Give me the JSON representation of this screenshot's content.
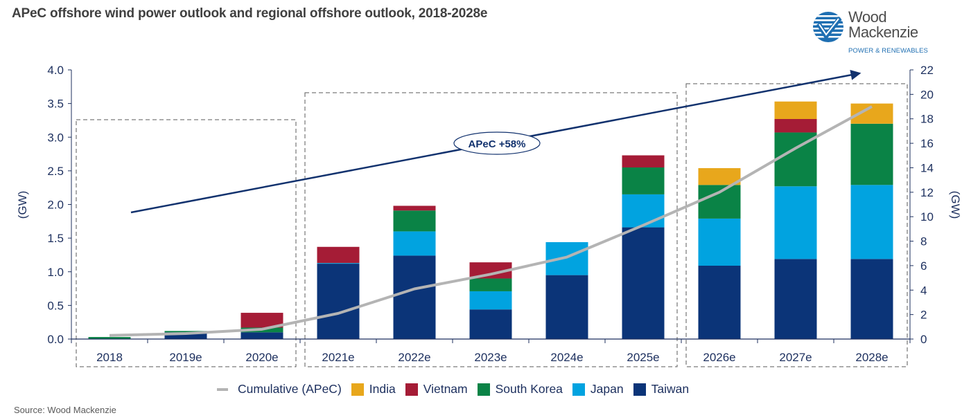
{
  "title": "APeC offshore wind power outlook and regional offshore outlook, 2018-2028e",
  "logo": {
    "line1": "Wood",
    "line2": "Mackenzie",
    "subtitle": "POWER & RENEWABLES"
  },
  "source": "Source: Wood Mackenzie",
  "colors": {
    "India": "#e8a71c",
    "Vietnam": "#a51c36",
    "South Korea": "#0a8346",
    "Japan": "#01a3e0",
    "Taiwan": "#0b3478",
    "Cumulative": "#b4b4b4",
    "axis": "#1c2f5e",
    "arrow": "#12326e"
  },
  "chart_data": {
    "type": "bar",
    "stacked": true,
    "title": "APeC offshore wind power outlook and regional offshore outlook, 2018-2028e",
    "xlabel": "",
    "ylabel": "(GW)",
    "y2label": "(GW)",
    "ylim": [
      0,
      4.0
    ],
    "y2lim": [
      0,
      22
    ],
    "yticks": [
      "0.0",
      "0.5",
      "1.0",
      "1.5",
      "2.0",
      "2.5",
      "3.0",
      "3.5",
      "4.0"
    ],
    "y2ticks": [
      "0",
      "2",
      "4",
      "6",
      "8",
      "10",
      "12",
      "14",
      "16",
      "18",
      "20",
      "22"
    ],
    "categories": [
      "2018",
      "2019e",
      "2020e",
      "2021e",
      "2022e",
      "2023e",
      "2024e",
      "2025e",
      "2026e",
      "2027e",
      "2028e"
    ],
    "series": [
      {
        "name": "Taiwan",
        "values": [
          0.0,
          0.1,
          0.1,
          1.12,
          1.24,
          0.44,
          0.95,
          1.66,
          1.09,
          1.19,
          1.19
        ]
      },
      {
        "name": "Japan",
        "values": [
          0.0,
          0.0,
          0.0,
          0.01,
          0.36,
          0.27,
          0.49,
          0.49,
          0.7,
          1.08,
          1.1
        ]
      },
      {
        "name": "South Korea",
        "values": [
          0.03,
          0.02,
          0.07,
          0.0,
          0.31,
          0.19,
          0.0,
          0.4,
          0.5,
          0.8,
          0.91
        ]
      },
      {
        "name": "Vietnam",
        "values": [
          0.0,
          0.0,
          0.22,
          0.24,
          0.07,
          0.24,
          0.0,
          0.18,
          0.0,
          0.2,
          0.0
        ]
      },
      {
        "name": "India",
        "values": [
          0.0,
          0.0,
          0.0,
          0.0,
          0.0,
          0.0,
          0.0,
          0.0,
          0.25,
          0.26,
          0.3
        ]
      }
    ],
    "line_series": {
      "name": "Cumulative (APeC)",
      "axis": "right",
      "values": [
        0.3,
        0.45,
        0.8,
        2.1,
        4.1,
        5.3,
        6.7,
        9.3,
        12.0,
        15.6,
        19.0
      ]
    },
    "groups": [
      {
        "from": "2018",
        "to": "2020e"
      },
      {
        "from": "2021e",
        "to": "2025e"
      },
      {
        "from": "2026e",
        "to": "2028e"
      }
    ],
    "annotation": {
      "text": "APeC +58%",
      "type": "growth-arrow"
    },
    "legend": {
      "placement": "bottom",
      "entries": [
        "Cumulative (APeC)",
        "India",
        "Vietnam",
        "South Korea",
        "Japan",
        "Taiwan"
      ]
    },
    "grid": false
  }
}
